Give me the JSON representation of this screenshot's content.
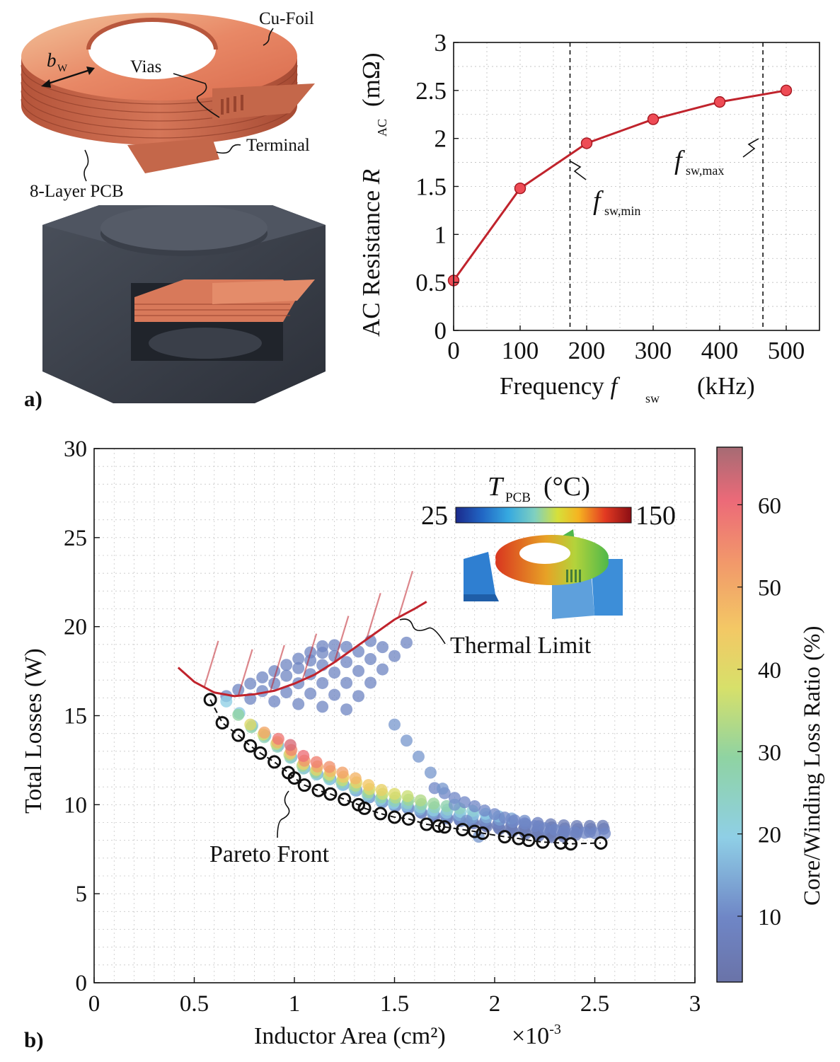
{
  "panel_labels": {
    "a": "a)",
    "b": "b)"
  },
  "illustration": {
    "label_cu_foil": "Cu-Foil",
    "label_bw": "b",
    "label_bw_sub": "W",
    "label_vias": "Vias",
    "label_terminal": "Terminal",
    "label_pcb": "8-Layer PCB",
    "copper_color": "#e07a5a",
    "core_color": "#3b404a"
  },
  "thermal_inset": {
    "title_main": "T",
    "title_sub": "PCB",
    "title_unit": "(°C)",
    "min_label": "25",
    "max_label": "150"
  },
  "annotations": {
    "fsw_min_main": "f",
    "fsw_min_sub": "sw,min",
    "fsw_max_main": "f",
    "fsw_max_sub": "sw,max",
    "thermal_limit": "Thermal Limit",
    "pareto_front": "Pareto Front",
    "x_exponent_prefix": "×10",
    "x_exponent_power": "-3"
  },
  "chart_data": [
    {
      "type": "line",
      "id": "ac_resistance",
      "title": "",
      "xlabel_main": "Frequency ",
      "xlabel_var": "f",
      "xlabel_sub": "sw",
      "xlabel_unit": "(kHz)",
      "ylabel_main": "AC Resistance ",
      "ylabel_var": "R",
      "ylabel_sub": "AC",
      "ylabel_unit": "(mΩ)",
      "xlim": [
        0,
        550
      ],
      "ylim": [
        0,
        3
      ],
      "xticks": [
        0,
        100,
        200,
        300,
        400,
        500
      ],
      "xtick_labels": [
        "0",
        "100",
        "200",
        "300",
        "400",
        "500"
      ],
      "yticks": [
        0,
        0.5,
        1,
        1.5,
        2,
        2.5,
        3
      ],
      "ytick_labels": [
        "0",
        "0.5",
        "1",
        "1.5",
        "2",
        "2.5",
        "3"
      ],
      "grid": true,
      "series": [
        {
          "name": "R_AC",
          "color": "#c0232c",
          "x": [
            0,
            100,
            200,
            300,
            400,
            500
          ],
          "y": [
            0.52,
            1.48,
            1.95,
            2.2,
            2.38,
            2.5
          ]
        }
      ],
      "vlines": [
        175,
        465
      ]
    },
    {
      "type": "scatter",
      "id": "pareto",
      "xlabel": "Inductor Area (cm²)",
      "ylabel": "Total Losses (W)",
      "xlim": [
        0,
        3
      ],
      "ylim": [
        0,
        30
      ],
      "xticks": [
        0,
        0.5,
        1,
        1.5,
        2,
        2.5,
        3
      ],
      "xtick_labels": [
        "0",
        "0.5",
        "1",
        "1.5",
        "2",
        "2.5",
        "3"
      ],
      "yticks": [
        0,
        5,
        10,
        15,
        20,
        25,
        30
      ],
      "ytick_labels": [
        "0",
        "5",
        "10",
        "15",
        "20",
        "25",
        "30"
      ],
      "grid": true,
      "colorbar": {
        "label": "Core/Winding Loss Ratio (%)",
        "range": [
          2,
          67
        ],
        "ticks": [
          10,
          20,
          30,
          40,
          50,
          60
        ],
        "tick_labels": [
          "10",
          "20",
          "30",
          "40",
          "50",
          "60"
        ]
      },
      "pareto_front": {
        "x": [
          0.58,
          0.64,
          0.72,
          0.78,
          0.83,
          0.9,
          0.97,
          1.0,
          1.05,
          1.12,
          1.18,
          1.25,
          1.32,
          1.35,
          1.43,
          1.5,
          1.57,
          1.66,
          1.72,
          1.75,
          1.84,
          1.9,
          1.94,
          2.05,
          2.12,
          2.17,
          2.24,
          2.33,
          2.38,
          2.53
        ],
        "y": [
          15.9,
          14.6,
          13.9,
          13.3,
          12.9,
          12.4,
          11.8,
          11.5,
          11.1,
          10.8,
          10.6,
          10.3,
          10.0,
          9.8,
          9.5,
          9.3,
          9.2,
          8.9,
          8.8,
          8.75,
          8.6,
          8.5,
          8.4,
          8.2,
          8.1,
          8.0,
          7.9,
          7.85,
          7.8,
          7.85
        ]
      },
      "thermal_limit": {
        "x": [
          0.42,
          0.5,
          0.6,
          0.7,
          0.8,
          0.9,
          1.0,
          1.1,
          1.2,
          1.3,
          1.4,
          1.5,
          1.6,
          1.66
        ],
        "y": [
          17.7,
          16.9,
          16.3,
          16.1,
          16.2,
          16.4,
          16.8,
          17.3,
          18.0,
          18.8,
          19.6,
          20.4,
          21.0,
          21.4
        ]
      },
      "scatter_families": [
        {
          "x0": 0.66,
          "y0": 15.8,
          "ratio0": 20
        },
        {
          "x0": 0.72,
          "y0": 14.9,
          "ratio0": 30
        },
        {
          "x0": 0.78,
          "y0": 14.2,
          "ratio0": 40
        },
        {
          "x0": 0.85,
          "y0": 13.6,
          "ratio0": 50
        },
        {
          "x0": 0.92,
          "y0": 13.1,
          "ratio0": 58
        },
        {
          "x0": 0.98,
          "y0": 12.6,
          "ratio0": 62
        }
      ]
    }
  ]
}
